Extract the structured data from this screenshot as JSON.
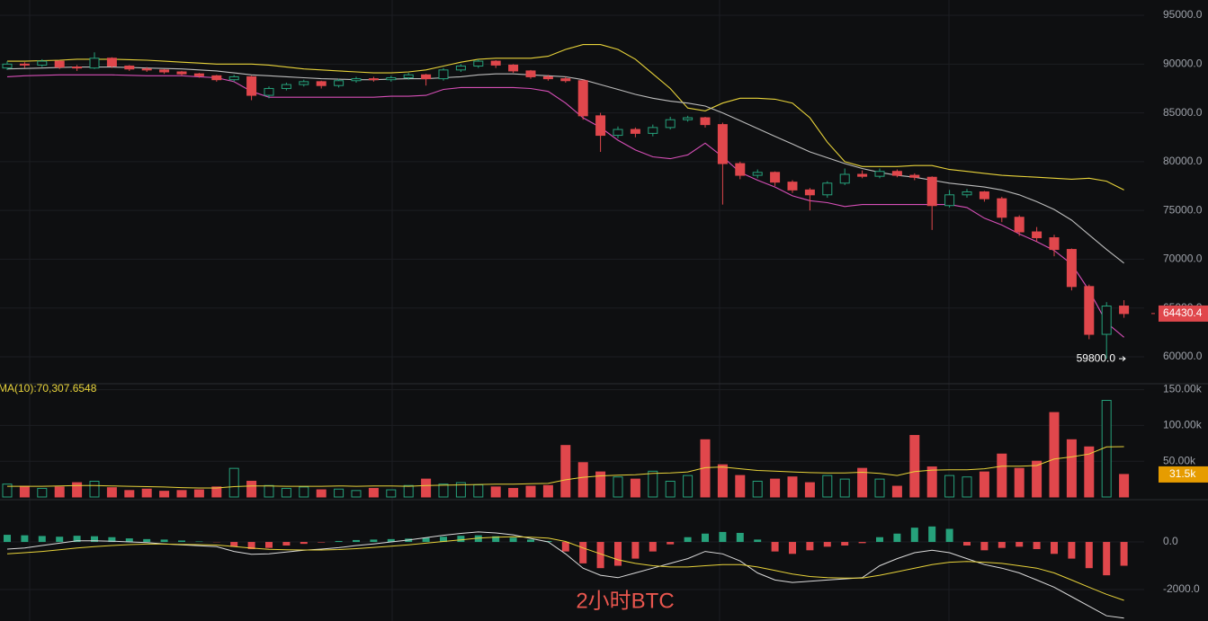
{
  "chart_data": {
    "type": "candlestick",
    "watermark": "2小时BTC",
    "up_color": "#26a17b",
    "down_color": "#e0474c",
    "ylim": [
      57420,
      96570
    ],
    "yticks": [
      {
        "value": 95000,
        "label": "95000.0"
      },
      {
        "value": 90000,
        "label": "90000.0"
      },
      {
        "value": 85000,
        "label": "85000.0"
      },
      {
        "value": 80000,
        "label": "80000.0"
      },
      {
        "value": 75000,
        "label": "75000.0"
      },
      {
        "value": 70000,
        "label": "70000.0"
      },
      {
        "value": 65000,
        "label": "65000.0"
      },
      {
        "value": 60000,
        "label": "60000.0"
      }
    ],
    "grid": true,
    "candles": [
      [
        89600,
        90300,
        89400,
        90000
      ],
      [
        90000,
        90200,
        89600,
        89900
      ],
      [
        89900,
        90500,
        89700,
        90300
      ],
      [
        90300,
        90400,
        89500,
        89700
      ],
      [
        89700,
        89900,
        89300,
        89600
      ],
      [
        89600,
        91200,
        89500,
        90600
      ],
      [
        90600,
        90700,
        89600,
        89800
      ],
      [
        89800,
        89900,
        89300,
        89500
      ],
      [
        89500,
        89700,
        89200,
        89400
      ],
      [
        89400,
        89500,
        89000,
        89200
      ],
      [
        89200,
        89300,
        88800,
        89000
      ],
      [
        89000,
        89100,
        88600,
        88800
      ],
      [
        88800,
        88900,
        88200,
        88400
      ],
      [
        88400,
        88900,
        88200,
        88700
      ],
      [
        88700,
        88800,
        86300,
        86800
      ],
      [
        86800,
        87700,
        86500,
        87500
      ],
      [
        87500,
        88100,
        87300,
        87900
      ],
      [
        87900,
        88400,
        87700,
        88200
      ],
      [
        88200,
        88300,
        87500,
        87800
      ],
      [
        87800,
        88500,
        87600,
        88300
      ],
      [
        88300,
        88700,
        88100,
        88500
      ],
      [
        88500,
        88700,
        88200,
        88400
      ],
      [
        88400,
        88800,
        88200,
        88600
      ],
      [
        88600,
        89100,
        88400,
        88900
      ],
      [
        88900,
        89000,
        87800,
        88500
      ],
      [
        88500,
        89600,
        88300,
        89400
      ],
      [
        89400,
        90000,
        89200,
        89800
      ],
      [
        89800,
        90500,
        89600,
        90300
      ],
      [
        90300,
        90400,
        89600,
        89900
      ],
      [
        89900,
        90000,
        89100,
        89300
      ],
      [
        89300,
        89400,
        88500,
        88700
      ],
      [
        88700,
        88900,
        88300,
        88500
      ],
      [
        88500,
        88700,
        88100,
        88300
      ],
      [
        88300,
        88400,
        84300,
        84700
      ],
      [
        84700,
        85000,
        81000,
        82700
      ],
      [
        82700,
        83600,
        82400,
        83300
      ],
      [
        83300,
        83500,
        82500,
        82900
      ],
      [
        82900,
        83800,
        82600,
        83500
      ],
      [
        83500,
        84600,
        83300,
        84300
      ],
      [
        84300,
        84700,
        84100,
        84500
      ],
      [
        84500,
        84600,
        83500,
        83800
      ],
      [
        83800,
        84000,
        75600,
        79800
      ],
      [
        79800,
        80000,
        78200,
        78600
      ],
      [
        78600,
        79200,
        78300,
        78900
      ],
      [
        78900,
        79000,
        77500,
        77900
      ],
      [
        77900,
        78100,
        76800,
        77100
      ],
      [
        77100,
        77300,
        75000,
        76600
      ],
      [
        76600,
        78000,
        76300,
        77800
      ],
      [
        77800,
        79300,
        77600,
        78700
      ],
      [
        78700,
        79100,
        78300,
        78500
      ],
      [
        78500,
        79300,
        78300,
        79000
      ],
      [
        79000,
        79200,
        78400,
        78600
      ],
      [
        78600,
        78800,
        78100,
        78400
      ],
      [
        78400,
        78500,
        73000,
        75500
      ],
      [
        75500,
        77100,
        75300,
        76600
      ],
      [
        76600,
        77200,
        76300,
        76900
      ],
      [
        76900,
        77000,
        75900,
        76200
      ],
      [
        76200,
        76400,
        73800,
        74300
      ],
      [
        74300,
        74500,
        72400,
        72800
      ],
      [
        72800,
        73300,
        71800,
        72200
      ],
      [
        72200,
        72500,
        70300,
        71000
      ],
      [
        71000,
        71100,
        66800,
        67200
      ],
      [
        67200,
        67400,
        61800,
        62300
      ],
      [
        62300,
        65600,
        59800,
        65200
      ],
      [
        65200,
        65800,
        64000,
        64430.4
      ]
    ],
    "bands": [
      {
        "color": "#e8d33a",
        "values": [
          90300,
          90300,
          90350,
          90400,
          90500,
          90500,
          90500,
          90450,
          90400,
          90300,
          90200,
          90100,
          90000,
          90000,
          90000,
          89900,
          89700,
          89500,
          89400,
          89300,
          89200,
          89100,
          89100,
          89200,
          89400,
          89800,
          90200,
          90500,
          90600,
          90600,
          90600,
          90800,
          91500,
          92000,
          92000,
          91500,
          90500,
          89000,
          87500,
          85500,
          85200,
          86000,
          86500,
          86500,
          86400,
          86000,
          84500,
          82000,
          80000,
          79500,
          79500,
          79500,
          79600,
          79600,
          79200,
          79000,
          78800,
          78600,
          78500,
          78400,
          78300,
          78200,
          78300,
          78000,
          77100
        ]
      },
      {
        "color": "#bdbdbd",
        "values": [
          89500,
          89550,
          89600,
          89650,
          89700,
          89700,
          89700,
          89650,
          89600,
          89550,
          89500,
          89400,
          89300,
          89100,
          88900,
          88800,
          88700,
          88600,
          88500,
          88450,
          88400,
          88400,
          88450,
          88500,
          88500,
          88600,
          88700,
          88900,
          89000,
          89000,
          88900,
          88800,
          88700,
          88400,
          87900,
          87400,
          86900,
          86500,
          86200,
          86000,
          85700,
          85000,
          84200,
          83400,
          82600,
          81800,
          81000,
          80400,
          79800,
          79300,
          78900,
          78600,
          78400,
          78100,
          77800,
          77600,
          77400,
          77100,
          76600,
          75900,
          75100,
          74000,
          72500,
          71000,
          69600
        ]
      },
      {
        "color": "#d64fb7",
        "values": [
          88700,
          88800,
          88850,
          88900,
          88900,
          88900,
          88900,
          88850,
          88800,
          88800,
          88800,
          88700,
          88600,
          88200,
          87200,
          86600,
          86600,
          86600,
          86600,
          86600,
          86600,
          86600,
          86700,
          86700,
          86800,
          87400,
          87600,
          87600,
          87600,
          87600,
          87500,
          87200,
          86000,
          84500,
          83500,
          82200,
          81200,
          80500,
          80300,
          80700,
          81900,
          80500,
          78900,
          78100,
          77400,
          76500,
          76000,
          75800,
          75400,
          75600,
          75600,
          75600,
          75600,
          75600,
          75600,
          75300,
          74200,
          73500,
          72600,
          71800,
          70900,
          69500,
          66800,
          63500,
          62000
        ]
      }
    ],
    "last_price": 64430.4,
    "low": {
      "value": 59800,
      "label": "59800.0"
    },
    "volume": {
      "ylim": [
        0,
        157000
      ],
      "yticks": [
        {
          "value": 150000,
          "label": "150.00k"
        },
        {
          "value": 100000,
          "label": "100.00k"
        },
        {
          "value": 50000,
          "label": "50.00k"
        }
      ],
      "values": [
        18000,
        15000,
        12000,
        14000,
        20000,
        22000,
        13000,
        9000,
        11000,
        8000,
        9000,
        10000,
        14000,
        40000,
        22000,
        16000,
        12000,
        14000,
        10000,
        11000,
        9000,
        12000,
        10000,
        16000,
        25000,
        18000,
        20000,
        17000,
        14000,
        12000,
        15000,
        16000,
        72000,
        48000,
        35000,
        28000,
        25000,
        36000,
        22000,
        30000,
        80000,
        45000,
        30000,
        22000,
        25000,
        28000,
        20000,
        30000,
        25000,
        40000,
        25000,
        15000,
        86000,
        42000,
        30000,
        28000,
        35000,
        60000,
        40000,
        50000,
        118000,
        80000,
        70000,
        135000,
        31500
      ],
      "ma": {
        "label": "MA(10):70,307.6548",
        "color": "#e8d33a",
        "values": [
          15000,
          15000,
          15000,
          15500,
          16000,
          16000,
          15500,
          15000,
          14500,
          14000,
          13000,
          12500,
          12500,
          14500,
          15500,
          15500,
          15000,
          15000,
          15000,
          15500,
          15000,
          15500,
          15500,
          15000,
          16000,
          16500,
          17000,
          17500,
          18000,
          18000,
          18500,
          19000,
          24000,
          27500,
          29500,
          30500,
          31000,
          33000,
          33500,
          35000,
          41000,
          42000,
          39500,
          37000,
          36000,
          35000,
          34000,
          33500,
          33500,
          34500,
          33000,
          30000,
          35500,
          37500,
          38000,
          38000,
          39500,
          43000,
          43000,
          44000,
          53000,
          56000,
          60000,
          70000,
          70307.6548
        ]
      },
      "last": {
        "value": 31500,
        "label": "31.5k"
      }
    },
    "macd": {
      "ylim": [
        -3320,
        1700
      ],
      "yticks": [
        {
          "value": 0,
          "label": "0.0"
        },
        {
          "value": -2000,
          "label": "-2000.0"
        }
      ],
      "histogram": [
        300,
        280,
        250,
        220,
        260,
        240,
        200,
        150,
        120,
        100,
        60,
        20,
        -10,
        -200,
        -300,
        -250,
        -150,
        -80,
        -20,
        40,
        80,
        100,
        120,
        140,
        180,
        220,
        260,
        280,
        240,
        180,
        100,
        40,
        -400,
        -900,
        -1100,
        -1000,
        -700,
        -400,
        -100,
        200,
        350,
        420,
        380,
        100,
        -400,
        -500,
        -350,
        -200,
        -150,
        -50,
        200,
        350,
        600,
        650,
        550,
        -150,
        -350,
        -250,
        -200,
        -300,
        -500,
        -700,
        -1100,
        -1400,
        -1000
      ],
      "lines": [
        {
          "color": "#dcdcdc",
          "values": [
            -300,
            -250,
            -150,
            -50,
            50,
            50,
            30,
            0,
            -30,
            -80,
            -120,
            -160,
            -200,
            -400,
            -520,
            -500,
            -420,
            -350,
            -300,
            -240,
            -150,
            -80,
            0,
            80,
            180,
            280,
            360,
            420,
            380,
            300,
            150,
            0,
            -500,
            -1100,
            -1400,
            -1500,
            -1300,
            -1100,
            -900,
            -700,
            -400,
            -500,
            -800,
            -1300,
            -1600,
            -1700,
            -1650,
            -1600,
            -1550,
            -1500,
            -1000,
            -700,
            -450,
            -350,
            -450,
            -700,
            -950,
            -1100,
            -1300,
            -1600,
            -1900,
            -2300,
            -2700,
            -3100,
            -3200
          ]
        },
        {
          "color": "#e8d33a",
          "values": [
            -500,
            -450,
            -400,
            -330,
            -250,
            -200,
            -150,
            -110,
            -90,
            -90,
            -100,
            -110,
            -130,
            -190,
            -260,
            -310,
            -330,
            -340,
            -340,
            -320,
            -280,
            -230,
            -180,
            -120,
            -50,
            20,
            90,
            160,
            200,
            220,
            200,
            160,
            20,
            -250,
            -500,
            -750,
            -900,
            -1000,
            -1050,
            -1050,
            -1000,
            -950,
            -950,
            -1050,
            -1200,
            -1350,
            -1450,
            -1500,
            -1520,
            -1520,
            -1400,
            -1250,
            -1100,
            -950,
            -850,
            -820,
            -850,
            -900,
            -1000,
            -1100,
            -1300,
            -1600,
            -1900,
            -2200,
            -2450
          ]
        }
      ]
    }
  }
}
